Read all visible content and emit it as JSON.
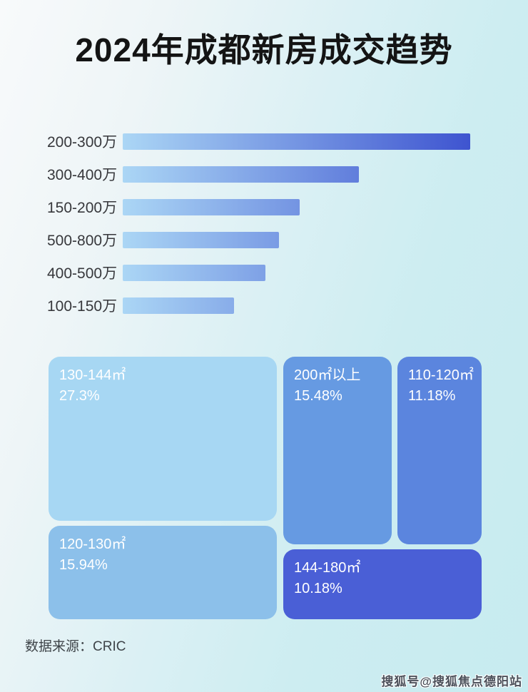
{
  "title": "2024年成都新房成交趋势",
  "chart_data": [
    {
      "type": "bar",
      "orientation": "horizontal",
      "categories": [
        "200-300万",
        "300-400万",
        "150-200万",
        "500-800万",
        "400-500万",
        "100-150万"
      ],
      "values_pct_of_max": [
        100,
        68,
        51,
        45,
        41,
        32
      ],
      "xlabel": "",
      "ylabel": "",
      "grid": false,
      "data_labels": false
    },
    {
      "type": "treemap",
      "blocks": [
        {
          "label": "130-144㎡",
          "percent": "27.3%",
          "value": 27.3,
          "color": "#a7d7f3"
        },
        {
          "label": "120-130㎡",
          "percent": "15.94%",
          "value": 15.94,
          "color": "#8cc0ea"
        },
        {
          "label": "200㎡以上",
          "percent": "15.48%",
          "value": 15.48,
          "color": "#669ae2"
        },
        {
          "label": "110-120㎡",
          "percent": "11.18%",
          "value": 11.18,
          "color": "#5b85de"
        },
        {
          "label": "144-180㎡",
          "percent": "10.18%",
          "value": 10.18,
          "color": "#4a5fd6"
        }
      ]
    }
  ],
  "footer": {
    "source_label": "数据来源：CRIC"
  },
  "watermark": "搜狐号@搜狐焦点德阳站",
  "colors": {
    "bar_gradient_from": "#abd6f5",
    "bar_gradient_to": "#3e54d0",
    "background_top_left": "#f8fafb",
    "background_bottom_right": "#c7ebf0",
    "title_color": "#141414"
  }
}
